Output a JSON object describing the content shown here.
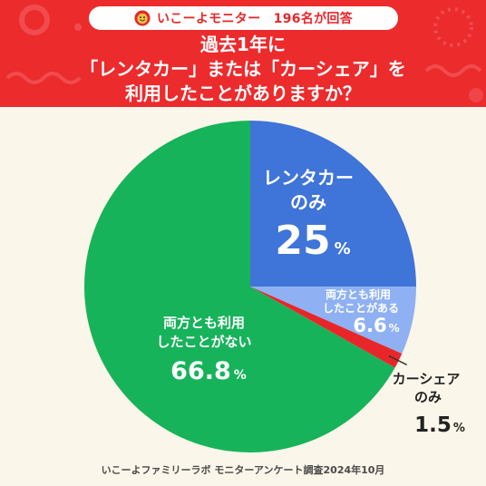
{
  "header": {
    "badge_text": "いこーよモニター　196名が回答",
    "question_lines": [
      "過去1年に",
      "「レンタカー」または「カーシェア」を",
      "利用したことがありますか？"
    ]
  },
  "chart_data": {
    "type": "pie",
    "slices": [
      {
        "label_lines": [
          "レンタカー",
          "のみ"
        ],
        "value": 25,
        "value_text": "25",
        "unit": "%",
        "color": "#3f74d8"
      },
      {
        "label_lines": [
          "両方とも利用",
          "したことがある"
        ],
        "value": 6.6,
        "value_text": "6.6",
        "unit": "%",
        "color": "#8fb1f3"
      },
      {
        "label_lines": [
          "カーシェア",
          "のみ"
        ],
        "value": 1.5,
        "value_text": "1.5",
        "unit": "%",
        "color": "#e8262a"
      },
      {
        "label_lines": [
          "両方とも利用",
          "したことがない"
        ],
        "value": 66.8,
        "value_text": "66.8",
        "unit": "%",
        "color": "#17b35a"
      }
    ],
    "start_angle": "12 o'clock",
    "direction": "clockwise"
  },
  "footer": {
    "source": "いこーよファミリーラボ モニターアンケート調査2024年10月"
  }
}
